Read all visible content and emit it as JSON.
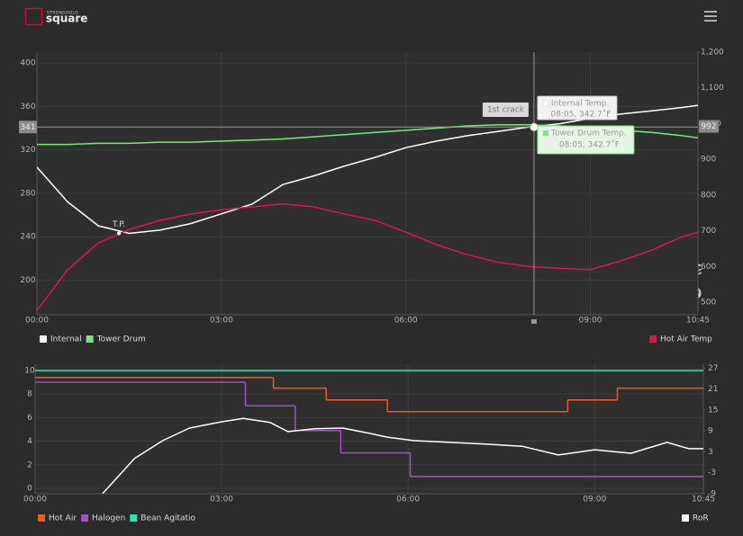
{
  "header": {
    "brand": "STRONGHOLD",
    "product": "square"
  },
  "chart_data": [
    {
      "type": "line",
      "x": [
        0,
        30,
        60,
        90,
        120,
        150,
        180,
        210,
        240,
        270,
        300,
        330,
        360,
        390,
        420,
        450,
        480,
        510,
        540,
        570,
        600,
        630,
        645
      ],
      "xlim": [
        0,
        645
      ],
      "xticks": [
        {
          "value": 0,
          "label": "00:00"
        },
        {
          "value": 180,
          "label": "03:00"
        },
        {
          "value": 360,
          "label": "06:00"
        },
        {
          "value": 540,
          "label": "09:00"
        },
        {
          "value": 645,
          "label": "10:45"
        }
      ],
      "ylim": [
        168,
        410
      ],
      "yticks": [
        200,
        240,
        280,
        320,
        360,
        400
      ],
      "y2lim": [
        465,
        1200
      ],
      "y2ticks": [
        500,
        600,
        700,
        800,
        900,
        1000,
        {
          "value": 1100,
          "label": "1,100"
        },
        {
          "value": 1200,
          "label": "1,200"
        }
      ],
      "grid": true,
      "series": [
        {
          "name": "Internal",
          "color": "#ffffff",
          "values": [
            304,
            272,
            250,
            243,
            246,
            252,
            261,
            270,
            288,
            296,
            305,
            313,
            322,
            328,
            333,
            337,
            341,
            344,
            349,
            353,
            356,
            359,
            361
          ]
        },
        {
          "name": "Tower Drum",
          "color": "#7ee37e",
          "values": [
            325,
            325,
            326,
            326,
            327,
            327,
            328,
            329,
            330,
            332,
            334,
            336,
            338,
            340,
            342,
            343,
            343,
            342,
            340,
            338,
            336,
            333,
            331
          ]
        },
        {
          "name": "Hot Air Temp",
          "color": "#e0134a",
          "axis": "y2",
          "values": [
            477,
            591,
            666,
            704,
            729,
            747,
            759,
            767,
            775,
            767,
            747,
            729,
            696,
            661,
            633,
            612,
            600,
            595,
            591,
            616,
            646,
            684,
            696
          ]
        }
      ],
      "cursor": {
        "x": 485,
        "y": 341,
        "y2": 992
      },
      "annotations": [
        {
          "label": "T.P.",
          "x": 80,
          "y": 243
        },
        {
          "label": "1st crack",
          "x": 485
        }
      ],
      "tooltips": [
        {
          "title": "Internal Temp.",
          "text": "08:05, 342.7˚F",
          "color": "#ffffff"
        },
        {
          "title": "Tower Drum Temp.",
          "text": "08:05, 342.7˚F",
          "color": "#7ee37e"
        }
      ]
    },
    {
      "type": "line",
      "xlim": [
        0,
        645
      ],
      "xticks": [
        {
          "value": 0,
          "label": "00:00"
        },
        {
          "value": 180,
          "label": "03:00"
        },
        {
          "value": 360,
          "label": "06:00"
        },
        {
          "value": 540,
          "label": "09:00"
        },
        {
          "value": 645,
          "label": "10:45"
        }
      ],
      "ylim": [
        -0.46,
        10.53
      ],
      "yticks": [
        0,
        2,
        4,
        6,
        8,
        10
      ],
      "y2lim": [
        -9,
        28.1
      ],
      "y2ticks": [
        -9,
        -3,
        3,
        9,
        15,
        21,
        27
      ],
      "grid": true,
      "series": [
        {
          "name": "Hot Air",
          "color": "#f05a22",
          "step": true,
          "x": [
            0,
            230,
            281,
            340,
            514,
            562
          ],
          "values": [
            9.4,
            8.5,
            7.5,
            6.5,
            7.5,
            8.5
          ]
        },
        {
          "name": "Halogen",
          "color": "#a64fc8",
          "step": true,
          "x": [
            0,
            203,
            251,
            295,
            362
          ],
          "values": [
            9,
            7,
            4.9,
            3,
            1
          ]
        },
        {
          "name": "Bean Agitatio",
          "color": "#1de9b6",
          "step": true,
          "x": [
            0
          ],
          "values": [
            10
          ]
        },
        {
          "name": "RoR",
          "color": "#ffffff",
          "axis": "y2",
          "x": [
            65,
            96,
            123,
            149,
            180,
            201,
            227,
            244,
            270,
            297,
            323,
            340,
            366,
            401,
            436,
            470,
            505,
            540,
            575,
            610,
            631,
            645
          ],
          "values": [
            -9,
            1.1,
            6.2,
            9.8,
            11.6,
            12.6,
            11.4,
            8.8,
            9.6,
            9.8,
            8.3,
            7.2,
            6.2,
            5.7,
            5.2,
            4.6,
            2.1,
            3.6,
            2.6,
            5.7,
            3.9,
            3.9
          ]
        }
      ]
    }
  ]
}
